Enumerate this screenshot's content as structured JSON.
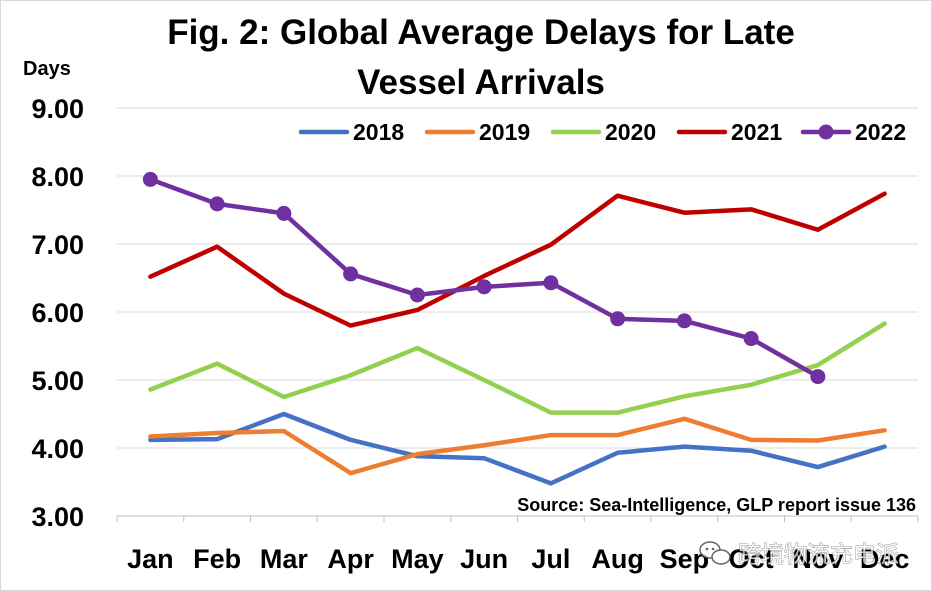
{
  "chart_data": {
    "type": "line",
    "title_lines": [
      "Fig. 2: Global Average Delays for Late",
      "Vessel Arrivals"
    ],
    "ylabel": "Days",
    "xlabel": "",
    "categories": [
      "Jan",
      "Feb",
      "Mar",
      "Apr",
      "May",
      "Jun",
      "Jul",
      "Aug",
      "Sep",
      "Oct",
      "Nov",
      "Dec"
    ],
    "ylim": [
      3.0,
      9.0
    ],
    "yticks": [
      3.0,
      4.0,
      5.0,
      6.0,
      7.0,
      8.0,
      9.0
    ],
    "ytick_labels": [
      "3.00",
      "4.00",
      "5.00",
      "6.00",
      "7.00",
      "8.00",
      "9.00"
    ],
    "grid": true,
    "legend_position": "top",
    "series": [
      {
        "name": "2018",
        "color": "#4472C4",
        "markers": false,
        "values": [
          4.12,
          4.13,
          4.5,
          4.12,
          3.88,
          3.85,
          3.48,
          3.93,
          4.02,
          3.96,
          3.72,
          4.02
        ]
      },
      {
        "name": "2019",
        "color": "#ED7D31",
        "markers": false,
        "values": [
          4.17,
          4.22,
          4.25,
          3.63,
          3.91,
          4.04,
          4.19,
          4.19,
          4.43,
          4.12,
          4.11,
          4.26
        ]
      },
      {
        "name": "2020",
        "color": "#92D050",
        "markers": false,
        "values": [
          4.86,
          5.24,
          4.75,
          5.07,
          5.47,
          5.0,
          4.52,
          4.52,
          4.76,
          4.93,
          5.22,
          5.83
        ]
      },
      {
        "name": "2021",
        "color": "#C00000",
        "markers": false,
        "values": [
          6.52,
          6.96,
          6.27,
          5.8,
          6.03,
          6.53,
          6.99,
          7.71,
          7.46,
          7.51,
          7.21,
          7.74
        ]
      },
      {
        "name": "2022",
        "color": "#7030A0",
        "markers": true,
        "values": [
          7.95,
          7.59,
          7.45,
          6.56,
          6.25,
          6.37,
          6.43,
          5.9,
          5.87,
          5.61,
          5.05,
          null
        ]
      }
    ],
    "annotation": "Source: Sea-Intelligence, GLP report issue 136"
  },
  "watermark": {
    "text": "跨境物流充电派",
    "icon": "wechat-icon"
  }
}
